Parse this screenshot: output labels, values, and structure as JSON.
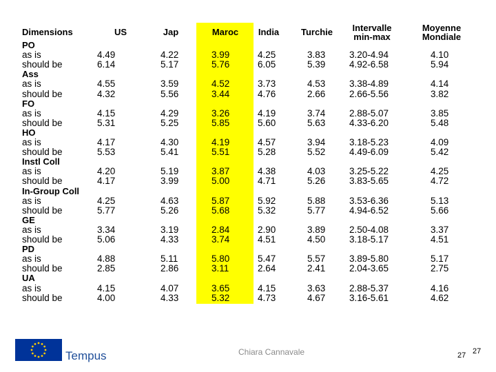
{
  "table": {
    "header": [
      "Dimensions",
      "US",
      "Jap",
      "Maroc",
      "India",
      "Turchie",
      "Intervalle min-max",
      "Moyenne Mondiale"
    ],
    "groups": [
      {
        "name": "PO",
        "rows": [
          {
            "label": "as is",
            "cells": [
              "4.49",
              "4.22",
              "3.99",
              "4.25",
              "3.83",
              "3.20-4.94",
              "4.10"
            ]
          },
          {
            "label": "should be",
            "cells": [
              "6.14",
              "5.17",
              "5.76",
              "6.05",
              "5.39",
              "4.92-6.58",
              "5.94"
            ]
          }
        ]
      },
      {
        "name": "Ass",
        "rows": [
          {
            "label": "as is",
            "cells": [
              "4.55",
              "3.59",
              "4.52",
              "3.73",
              "4.53",
              "3.38-4.89",
              "4.14"
            ]
          },
          {
            "label": "should be",
            "cells": [
              "4.32",
              "5.56",
              "3.44",
              "4.76",
              "2.66",
              "2.66-5.56",
              "3.82"
            ]
          }
        ]
      },
      {
        "name": "FO",
        "rows": [
          {
            "label": "as is",
            "cells": [
              "4.15",
              "4.29",
              "3.26",
              "4.19",
              "3.74",
              "2.88-5.07",
              "3.85"
            ]
          },
          {
            "label": "should be",
            "cells": [
              "5.31",
              "5.25",
              "5.85",
              "5.60",
              "5.63",
              "4.33-6.20",
              "5.48"
            ]
          }
        ]
      },
      {
        "name": "HO",
        "rows": [
          {
            "label": "as is",
            "cells": [
              "4.17",
              "4.30",
              "4.19",
              "4.57",
              "3.94",
              "3.18-5.23",
              "4.09"
            ]
          },
          {
            "label": "should be",
            "cells": [
              "5.53",
              "5.41",
              "5.51",
              "5.28",
              "5.52",
              "4.49-6.09",
              "5.42"
            ]
          }
        ]
      },
      {
        "name": "Instl Coll",
        "rows": [
          {
            "label": "as is",
            "cells": [
              "4.20",
              "5.19",
              "3.87",
              "4.38",
              "4.03",
              "3.25-5.22",
              "4.25"
            ]
          },
          {
            "label": "should be",
            "cells": [
              "4.17",
              "3.99",
              "5.00",
              "4.71",
              "5.26",
              "3.83-5.65",
              "4.72"
            ]
          }
        ]
      },
      {
        "name": "In-Group Coll",
        "rows": [
          {
            "label": "as is",
            "cells": [
              "4.25",
              "4.63",
              "5.87",
              "5.92",
              "5.88",
              "3.53-6.36",
              "5.13"
            ]
          },
          {
            "label": "should be",
            "cells": [
              "5.77",
              "5.26",
              "5.68",
              "5.32",
              "5.77",
              "4.94-6.52",
              "5.66"
            ]
          }
        ]
      },
      {
        "name": "GE",
        "rows": [
          {
            "label": "as is",
            "cells": [
              "3.34",
              "3.19",
              "2.84",
              "2.90",
              "3.89",
              "2.50-4.08",
              "3.37"
            ]
          },
          {
            "label": "should be",
            "cells": [
              "5.06",
              "4.33",
              "3.74",
              "4.51",
              "4.50",
              "3.18-5.17",
              "4.51"
            ]
          }
        ]
      },
      {
        "name": "PD",
        "rows": [
          {
            "label": "as is",
            "cells": [
              "4.88",
              "5.11",
              "5.80",
              "5.47",
              "5.57",
              "3.89-5.80",
              "5.17"
            ]
          },
          {
            "label": "should be",
            "cells": [
              "2.85",
              "2.86",
              "3.11",
              "2.64",
              "2.41",
              "2.04-3.65",
              "2.75"
            ]
          }
        ]
      },
      {
        "name": "UA",
        "rows": [
          {
            "label": "as is",
            "cells": [
              "4.15",
              "4.07",
              "3.65",
              "4.15",
              "3.63",
              "2.88-5.37",
              "4.16"
            ]
          },
          {
            "label": "should be",
            "cells": [
              "4.00",
              "4.33",
              "5.32",
              "4.73",
              "4.67",
              "3.16-5.61",
              "4.62"
            ]
          }
        ]
      }
    ]
  },
  "footer": {
    "logo": "Tempus",
    "author": "Chiara Cannavale",
    "page": "27",
    "slide_number": "27"
  }
}
